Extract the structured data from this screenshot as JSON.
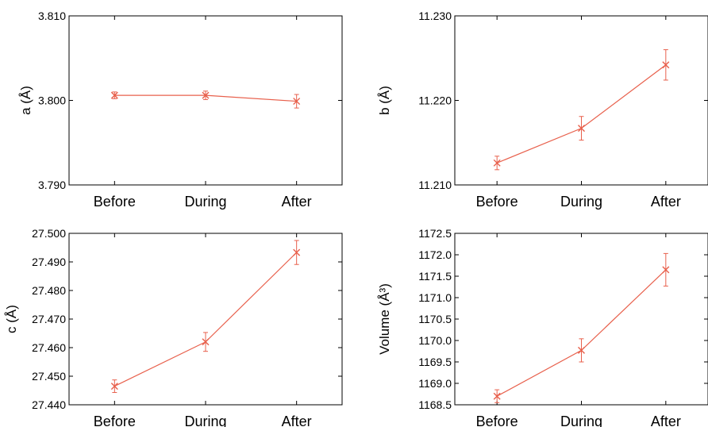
{
  "accent_color": "#e8604c",
  "chart_data": [
    {
      "type": "line",
      "title": "",
      "xlabel": "",
      "ylabel": "a (Å)",
      "categories": [
        "Before",
        "During",
        "After"
      ],
      "values": [
        3.8006,
        3.8006,
        3.7999
      ],
      "errors": [
        0.0004,
        0.0005,
        0.0008
      ],
      "ylim": [
        3.79,
        3.81
      ],
      "yticks": [
        3.79,
        3.8,
        3.81
      ],
      "ytick_labels": [
        "3.790",
        "3.800",
        "3.810"
      ],
      "grid": false
    },
    {
      "type": "line",
      "title": "",
      "xlabel": "",
      "ylabel": "b (Å)",
      "categories": [
        "Before",
        "During",
        "After"
      ],
      "values": [
        11.2126,
        11.2167,
        11.2242
      ],
      "errors": [
        0.0008,
        0.0014,
        0.0018
      ],
      "ylim": [
        11.21,
        11.23
      ],
      "yticks": [
        11.21,
        11.22,
        11.23
      ],
      "ytick_labels": [
        "11.210",
        "11.220",
        "11.230"
      ],
      "grid": false
    },
    {
      "type": "line",
      "title": "",
      "xlabel": "",
      "ylabel": "c (Å)",
      "categories": [
        "Before",
        "During",
        "After"
      ],
      "values": [
        27.4465,
        27.462,
        27.4933
      ],
      "errors": [
        0.0022,
        0.0033,
        0.0042
      ],
      "ylim": [
        27.44,
        27.5
      ],
      "yticks": [
        27.44,
        27.45,
        27.46,
        27.47,
        27.48,
        27.49,
        27.5
      ],
      "ytick_labels": [
        "27.440",
        "27.450",
        "27.460",
        "27.470",
        "27.480",
        "27.490",
        "27.500"
      ],
      "grid": false
    },
    {
      "type": "line",
      "title": "",
      "xlabel": "",
      "ylabel": "Volume (Å³)",
      "categories": [
        "Before",
        "During",
        "After"
      ],
      "values": [
        1168.7,
        1169.77,
        1171.65
      ],
      "errors": [
        0.15,
        0.27,
        0.38
      ],
      "ylim": [
        1168.5,
        1172.5
      ],
      "yticks": [
        1168.5,
        1169.0,
        1169.5,
        1170.0,
        1170.5,
        1171.0,
        1171.5,
        1172.0,
        1172.5
      ],
      "ytick_labels": [
        "1168.5",
        "1169.0",
        "1169.5",
        "1170.0",
        "1170.5",
        "1171.0",
        "1171.5",
        "1172.0",
        "1172.5"
      ],
      "grid": false
    }
  ]
}
